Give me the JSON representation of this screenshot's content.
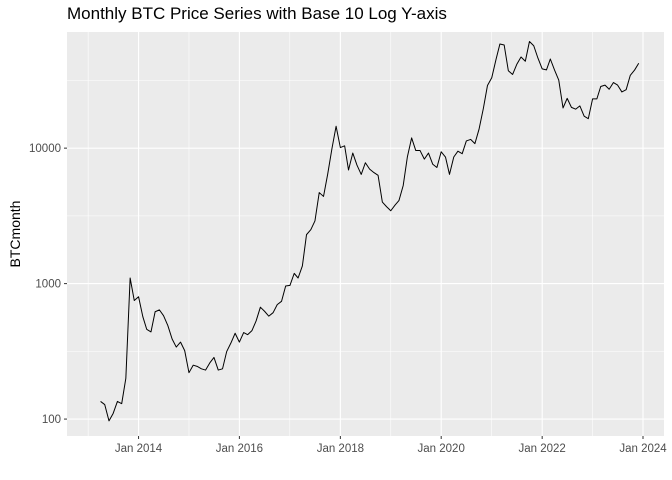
{
  "chart_data": {
    "type": "line",
    "title": "Monthly BTC Price Series with Base 10 Log Y-axis",
    "xlabel": "",
    "ylabel": "BTCmonth",
    "y_scale": "log10",
    "ylim": [
      75,
      72000
    ],
    "xlim": [
      "2012-08-01",
      "2024-06-01"
    ],
    "x_ticks": [
      {
        "date": "2014-01-01",
        "label": "Jan 2014"
      },
      {
        "date": "2016-01-01",
        "label": "Jan 2016"
      },
      {
        "date": "2018-01-01",
        "label": "Jan 2018"
      },
      {
        "date": "2020-01-01",
        "label": "Jan 2020"
      },
      {
        "date": "2022-01-01",
        "label": "Jan 2022"
      },
      {
        "date": "2024-01-01",
        "label": "Jan 2024"
      }
    ],
    "y_ticks": [
      {
        "value": 100,
        "label": "100"
      },
      {
        "value": 1000,
        "label": "1000"
      },
      {
        "value": 10000,
        "label": "10000"
      }
    ],
    "grid": true,
    "legend": "none",
    "series": [
      {
        "x": [
          "2013-04-01",
          "2013-05-01",
          "2013-06-01",
          "2013-07-01",
          "2013-08-01",
          "2013-09-01",
          "2013-10-01",
          "2013-11-01",
          "2013-12-01",
          "2014-01-01",
          "2014-02-01",
          "2014-03-01",
          "2014-04-01",
          "2014-05-01",
          "2014-06-01",
          "2014-07-01",
          "2014-08-01",
          "2014-09-01",
          "2014-10-01",
          "2014-11-01",
          "2014-12-01",
          "2015-01-01",
          "2015-02-01",
          "2015-03-01",
          "2015-04-01",
          "2015-05-01",
          "2015-06-01",
          "2015-07-01",
          "2015-08-01",
          "2015-09-01",
          "2015-10-01",
          "2015-11-01",
          "2015-12-01",
          "2016-01-01",
          "2016-02-01",
          "2016-03-01",
          "2016-04-01",
          "2016-05-01",
          "2016-06-01",
          "2016-07-01",
          "2016-08-01",
          "2016-09-01",
          "2016-10-01",
          "2016-11-01",
          "2016-12-01",
          "2017-01-01",
          "2017-02-01",
          "2017-03-01",
          "2017-04-01",
          "2017-05-01",
          "2017-06-01",
          "2017-07-01",
          "2017-08-01",
          "2017-09-01",
          "2017-10-01",
          "2017-11-01",
          "2017-12-01",
          "2018-01-01",
          "2018-02-01",
          "2018-03-01",
          "2018-04-01",
          "2018-05-01",
          "2018-06-01",
          "2018-07-01",
          "2018-08-01",
          "2018-09-01",
          "2018-10-01",
          "2018-11-01",
          "2018-12-01",
          "2019-01-01",
          "2019-02-01",
          "2019-03-01",
          "2019-04-01",
          "2019-05-01",
          "2019-06-01",
          "2019-07-01",
          "2019-08-01",
          "2019-09-01",
          "2019-10-01",
          "2019-11-01",
          "2019-12-01",
          "2020-01-01",
          "2020-02-01",
          "2020-03-01",
          "2020-04-01",
          "2020-05-01",
          "2020-06-01",
          "2020-07-01",
          "2020-08-01",
          "2020-09-01",
          "2020-10-01",
          "2020-11-01",
          "2020-12-01",
          "2021-01-01",
          "2021-02-01",
          "2021-03-01",
          "2021-04-01",
          "2021-05-01",
          "2021-06-01",
          "2021-07-01",
          "2021-08-01",
          "2021-09-01",
          "2021-10-01",
          "2021-11-01",
          "2021-12-01",
          "2022-01-01",
          "2022-02-01",
          "2022-03-01",
          "2022-04-01",
          "2022-05-01",
          "2022-06-01",
          "2022-07-01",
          "2022-08-01",
          "2022-09-01",
          "2022-10-01",
          "2022-11-01",
          "2022-12-01",
          "2023-01-01",
          "2023-02-01",
          "2023-03-01",
          "2023-04-01",
          "2023-05-01",
          "2023-06-01",
          "2023-07-01",
          "2023-08-01",
          "2023-09-01",
          "2023-10-01",
          "2023-11-01",
          "2023-12-01"
        ],
        "y": [
          135,
          128,
          97,
          110,
          135,
          130,
          200,
          1100,
          750,
          800,
          570,
          460,
          440,
          620,
          640,
          580,
          490,
          390,
          340,
          370,
          320,
          220,
          250,
          245,
          235,
          230,
          260,
          285,
          230,
          235,
          315,
          365,
          430,
          370,
          435,
          420,
          450,
          530,
          670,
          625,
          575,
          610,
          700,
          740,
          960,
          970,
          1190,
          1100,
          1350,
          2300,
          2500,
          2900,
          4700,
          4400,
          6400,
          9900,
          14500,
          10100,
          10400,
          6900,
          9200,
          7500,
          6400,
          7800,
          7000,
          6600,
          6300,
          4000,
          3700,
          3450,
          3800,
          4100,
          5300,
          8600,
          11900,
          9600,
          9600,
          8300,
          9200,
          7600,
          7200,
          9400,
          8600,
          6400,
          8600,
          9500,
          9100,
          11300,
          11600,
          10800,
          13800,
          19600,
          29000,
          33100,
          45200,
          58700,
          57700,
          37300,
          35000,
          41500,
          47100,
          43800,
          61300,
          57000,
          46300,
          38500,
          37800,
          45500,
          37600,
          31800,
          19800,
          23300,
          20000,
          19400,
          20500,
          17200,
          16500,
          23100,
          23100,
          28500,
          29200,
          27200,
          30500,
          29200,
          26000,
          27000,
          34500,
          37700,
          42300
        ]
      }
    ]
  }
}
